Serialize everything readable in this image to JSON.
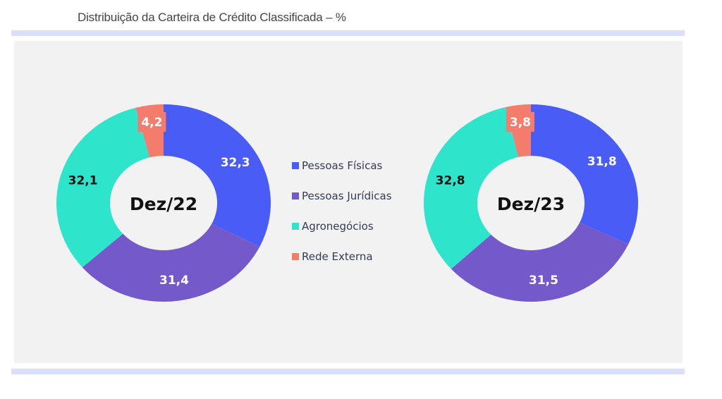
{
  "chart_data": [
    {
      "type": "pie",
      "title": "Distribuição da Carteira de Crédito Classificada – %",
      "center_label": "Dez/22",
      "categories": [
        "Pessoas Físicas",
        "Pessoas Jurídicas",
        "Agronegócios",
        "Rede Externa"
      ],
      "values": [
        32.3,
        31.4,
        32.1,
        4.2
      ],
      "labels": [
        "32,3",
        "31,4",
        "32,1",
        "4,2"
      ],
      "colors": [
        "#4a5cf6",
        "#7359c9",
        "#2ee5cc",
        "#f47c6c"
      ],
      "donut": true,
      "legend": "center"
    },
    {
      "type": "pie",
      "center_label": "Dez/23",
      "categories": [
        "Pessoas Físicas",
        "Pessoas Jurídicas",
        "Agronegócios",
        "Rede Externa"
      ],
      "values": [
        31.8,
        31.5,
        32.8,
        3.8
      ],
      "labels": [
        "31,8",
        "31,5",
        "32,8",
        "3,8"
      ],
      "colors": [
        "#4a5cf6",
        "#7359c9",
        "#2ee5cc",
        "#f47c6c"
      ],
      "donut": true
    }
  ],
  "title": "Distribuição da Carteira de Crédito Classificada – %",
  "legend": [
    "Pessoas Físicas",
    "Pessoas Jurídicas",
    "Agronegócios",
    "Rede Externa"
  ]
}
